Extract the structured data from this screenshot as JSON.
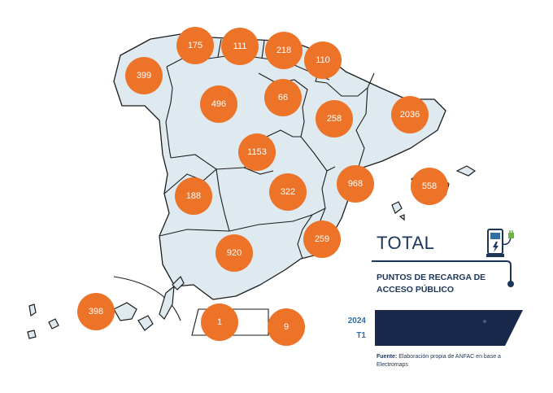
{
  "title": "TOTAL",
  "subtitle": "PUNTOS DE RECARGA DE ACCESO PÚBLICO",
  "period": {
    "year": "2024",
    "quarter": "T1"
  },
  "source": {
    "label": "Fuente:",
    "text": "Elaboración propia de ANFAC en base a Electromaps"
  },
  "colors": {
    "bubble": "#ec7327",
    "land": "#dfeaf0",
    "title": "#1d3557",
    "panel": "#17284a",
    "period": "#2d6ea3"
  },
  "icons": {
    "charger": "ev-charger-icon"
  },
  "regions": [
    {
      "id": "asturias",
      "label": "175"
    },
    {
      "id": "cantabria",
      "label": "111"
    },
    {
      "id": "pais-vasco",
      "label": "218"
    },
    {
      "id": "navarra",
      "label": "110"
    },
    {
      "id": "galicia",
      "label": "399"
    },
    {
      "id": "castilla-y-leon",
      "label": "496"
    },
    {
      "id": "la-rioja",
      "label": "66"
    },
    {
      "id": "aragon",
      "label": "258"
    },
    {
      "id": "cataluna",
      "label": "2036"
    },
    {
      "id": "madrid",
      "label": "1153"
    },
    {
      "id": "extremadura",
      "label": "188"
    },
    {
      "id": "castilla-la-mancha",
      "label": "322"
    },
    {
      "id": "comunidad-valenciana",
      "label": "968"
    },
    {
      "id": "baleares",
      "label": "558"
    },
    {
      "id": "murcia",
      "label": "259"
    },
    {
      "id": "andalucia",
      "label": "920"
    },
    {
      "id": "canarias",
      "label": "398"
    },
    {
      "id": "ceuta",
      "label": "1"
    },
    {
      "id": "melilla",
      "label": "9"
    }
  ]
}
